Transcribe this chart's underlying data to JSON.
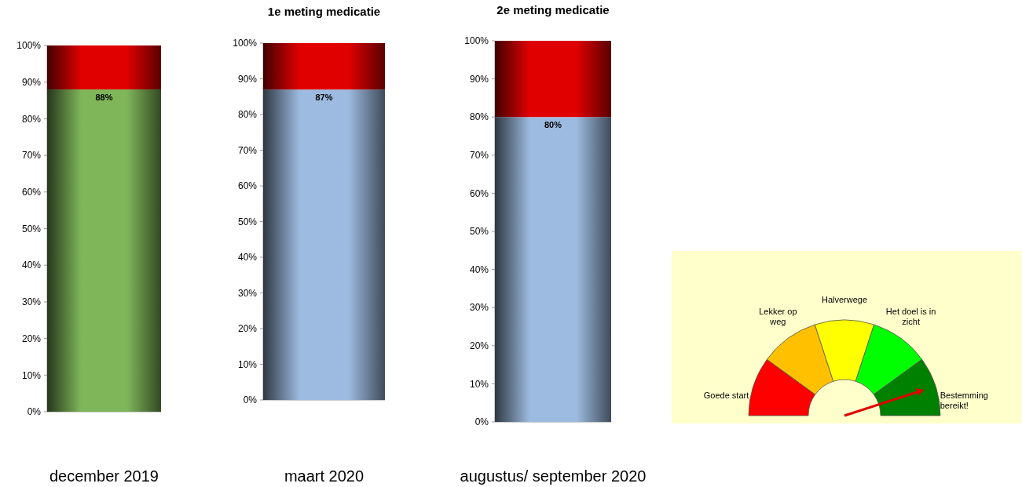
{
  "chart_data": [
    {
      "type": "bar",
      "stacked": true,
      "categories": [
        "december 2019"
      ],
      "ylim": [
        0,
        100
      ],
      "yticks": [
        {
          "value": 0,
          "label": "0%"
        },
        {
          "value": 10,
          "label": "10%"
        },
        {
          "value": 20,
          "label": "20%"
        },
        {
          "value": 30,
          "label": "30%"
        },
        {
          "value": 40,
          "label": "40%"
        },
        {
          "value": 50,
          "label": "50%"
        },
        {
          "value": 60,
          "label": "60%"
        },
        {
          "value": 70,
          "label": "70%"
        },
        {
          "value": 80,
          "label": "80%"
        },
        {
          "value": 90,
          "label": "90%"
        },
        {
          "value": 100,
          "label": "100%"
        }
      ],
      "series": [
        {
          "color": "#7fb65a",
          "values": [
            88
          ],
          "value_labels": [
            "88%"
          ]
        },
        {
          "color": "#e00000",
          "values": [
            12
          ]
        }
      ]
    },
    {
      "type": "bar",
      "stacked": true,
      "title": "1e meting medicatie",
      "categories": [
        "maart 2020"
      ],
      "ylim": [
        0,
        100
      ],
      "yticks": [
        {
          "value": 0,
          "label": "0%"
        },
        {
          "value": 10,
          "label": "10%"
        },
        {
          "value": 20,
          "label": "20%"
        },
        {
          "value": 30,
          "label": "30%"
        },
        {
          "value": 40,
          "label": "40%"
        },
        {
          "value": 50,
          "label": "50%"
        },
        {
          "value": 60,
          "label": "60%"
        },
        {
          "value": 70,
          "label": "70%"
        },
        {
          "value": 80,
          "label": "80%"
        },
        {
          "value": 90,
          "label": "90%"
        },
        {
          "value": 100,
          "label": "100%"
        }
      ],
      "series": [
        {
          "color": "#9dbbe0",
          "values": [
            87
          ],
          "value_labels": [
            "87%"
          ]
        },
        {
          "color": "#e00000",
          "values": [
            13
          ]
        }
      ]
    },
    {
      "type": "bar",
      "stacked": true,
      "title": "2e meting medicatie",
      "categories": [
        "augustus/ september 2020"
      ],
      "ylim": [
        0,
        100
      ],
      "yticks": [
        {
          "value": 0,
          "label": "0%"
        },
        {
          "value": 10,
          "label": "10%"
        },
        {
          "value": 20,
          "label": "20%"
        },
        {
          "value": 30,
          "label": "30%"
        },
        {
          "value": 40,
          "label": "40%"
        },
        {
          "value": 50,
          "label": "50%"
        },
        {
          "value": 60,
          "label": "60%"
        },
        {
          "value": 70,
          "label": "70%"
        },
        {
          "value": 80,
          "label": "80%"
        },
        {
          "value": 90,
          "label": "90%"
        },
        {
          "value": 100,
          "label": "100%"
        }
      ],
      "series": [
        {
          "color": "#9dbbe0",
          "values": [
            80
          ],
          "value_labels": [
            "80%"
          ]
        },
        {
          "color": "#e00000",
          "values": [
            20
          ]
        }
      ]
    },
    {
      "type": "donut",
      "categories": [
        "Goede start",
        "Lekker op weg",
        "Halverwege",
        "Het doel is in zicht",
        "Bestemming bereikt!"
      ],
      "values": [
        20,
        20,
        20,
        20,
        20
      ],
      "colors": [
        "#ff0000",
        "#ffc000",
        "#ffff00",
        "#00ff00",
        "#008000"
      ],
      "needle": "Bestemming bereikt!"
    }
  ]
}
